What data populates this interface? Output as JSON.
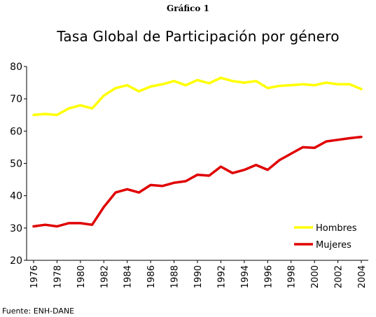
{
  "figure_label": "Gráfico 1",
  "source": "Fuente:  ENH-DANE",
  "colors": {
    "hombres": "#FFFF00",
    "mujeres": "#E00000",
    "axis": "#000000",
    "background": "#ffffff"
  },
  "chart_data": {
    "type": "line",
    "title": "Tasa Global de Participación por género",
    "xlabel": "",
    "ylabel": "",
    "ylim": [
      20,
      80
    ],
    "yticks": [
      20,
      30,
      40,
      50,
      60,
      70,
      80
    ],
    "xlim": [
      1976,
      2004
    ],
    "xticks": [
      1976,
      1978,
      1980,
      1982,
      1984,
      1986,
      1988,
      1990,
      1992,
      1994,
      1996,
      1998,
      2000,
      2002,
      2004
    ],
    "grid": false,
    "legend_position": "bottom-right",
    "x": [
      1976,
      1977,
      1978,
      1979,
      1980,
      1981,
      1982,
      1983,
      1984,
      1985,
      1986,
      1987,
      1988,
      1989,
      1990,
      1991,
      1992,
      1993,
      1994,
      1995,
      1996,
      1997,
      1998,
      1999,
      2000,
      2001,
      2002,
      2003,
      2004
    ],
    "series": [
      {
        "name": "Hombres",
        "color": "#FFFF00",
        "values": [
          65.0,
          65.3,
          65.0,
          67.0,
          68.0,
          67.0,
          71.0,
          73.3,
          74.2,
          72.3,
          73.8,
          74.5,
          75.5,
          74.2,
          75.8,
          74.8,
          76.5,
          75.5,
          75.0,
          75.5,
          73.3,
          74.0,
          74.2,
          74.5,
          74.2,
          75.0,
          74.5,
          74.5,
          73.0
        ]
      },
      {
        "name": "Mujeres",
        "color": "#E00000",
        "values": [
          30.5,
          31.0,
          30.5,
          31.5,
          31.5,
          31.0,
          36.5,
          41.0,
          42.0,
          41.0,
          43.3,
          43.0,
          44.0,
          44.5,
          46.5,
          46.2,
          49.0,
          47.0,
          48.0,
          49.5,
          48.0,
          51.0,
          53.0,
          55.0,
          54.8,
          56.8,
          57.3,
          57.8,
          58.2
        ]
      }
    ]
  }
}
